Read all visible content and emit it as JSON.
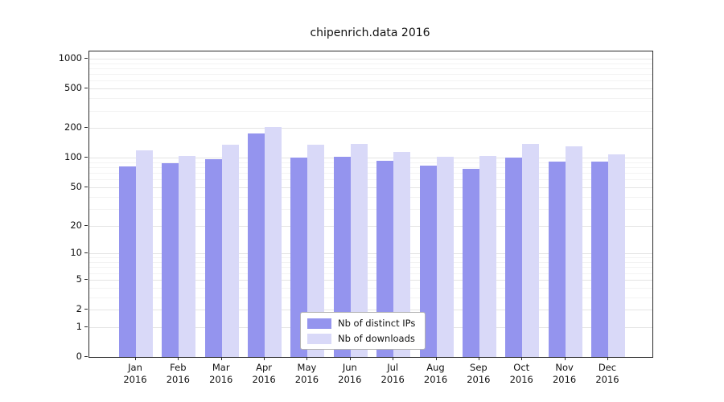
{
  "title": "chipenrich.data 2016",
  "colors": {
    "ips_bar": "#9494ee",
    "downloads_bar": "#d9d9f8",
    "grid_major": "#e4e4e4",
    "grid_minor": "#f3f3f3",
    "axis": "#2a2a2a"
  },
  "legend": {
    "ips_label": "Nb of distinct IPs",
    "downloads_label": "Nb of downloads"
  },
  "chart_data": {
    "type": "bar",
    "title": "chipenrich.data 2016",
    "categories": [
      "Jan",
      "Feb",
      "Mar",
      "Apr",
      "May",
      "Jun",
      "Jul",
      "Aug",
      "Sep",
      "Oct",
      "Nov",
      "Dec"
    ],
    "year": "2016",
    "series": [
      {
        "name": "Nb of distinct IPs",
        "color": "#9494ee",
        "values": [
          82,
          88,
          96,
          175,
          100,
          102,
          93,
          83,
          77,
          100,
          92,
          92
        ]
      },
      {
        "name": "Nb of downloads",
        "color": "#d9d9f8",
        "values": [
          120,
          105,
          135,
          205,
          135,
          138,
          115,
          102,
          105,
          138,
          130,
          108
        ]
      }
    ],
    "yscale": "symlog",
    "ylabel": "",
    "xlabel": "",
    "yticks": [
      0,
      1,
      2,
      5,
      10,
      20,
      50,
      100,
      200,
      500,
      1000
    ],
    "minor_gridlines": [
      3,
      4,
      6,
      7,
      8,
      9,
      30,
      40,
      60,
      70,
      80,
      90,
      300,
      400,
      600,
      700,
      800,
      900
    ],
    "ylim": [
      0,
      1180
    ],
    "grid": true,
    "legend_position": "lower center"
  }
}
